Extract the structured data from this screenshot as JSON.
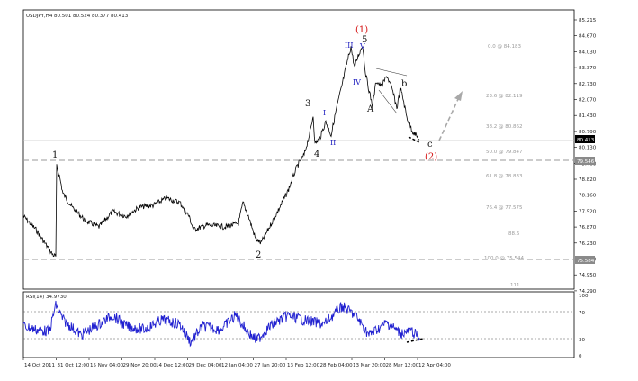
{
  "header": {
    "text": "USDJPY,H4  80.501 80.524 80.377 80.413"
  },
  "rsi": {
    "label": "RSI(14) 34.9730",
    "scale": [
      "100",
      "70",
      "30",
      "0"
    ]
  },
  "price_axis": [
    "85.215",
    "84.670",
    "84.030",
    "83.370",
    "82.730",
    "82.070",
    "81.430",
    "80.790",
    "80.130",
    "79.460",
    "78.820",
    "78.160",
    "77.520",
    "76.870",
    "76.230",
    "75.590",
    "74.950",
    "74.290"
  ],
  "price_badges": {
    "current": "80.413",
    "grey_upper": "79.546",
    "grey_lower": "75.584"
  },
  "fib_levels": [
    "0.0 @ 84.183",
    "23.6 @ 82.119",
    "38.2 @ 80.862",
    "50.0 @ 79.847",
    "61.8 @ 78.833",
    "76.4 @ 77.575",
    "88.6",
    "100.0 @ 75.544",
    "111"
  ],
  "time_axis": [
    "14 Oct 2011",
    "31 Oct 12:00",
    "15 Nov 04:00",
    "29 Nov 20:00",
    "14 Dec 12:00",
    "29 Dec 04:00",
    "12 Jan 04:00",
    "27 Jan 20:00",
    "13 Feb 12:00",
    "28 Feb 04:00",
    "13 Mar 20:00",
    "28 Mar 12:00",
    "12 Apr 04:00"
  ],
  "waves": {
    "w1": "1",
    "w2": "2",
    "w3": "3",
    "w4": "4",
    "w5_paren": "(1)",
    "w5": "5",
    "sub_I": "I",
    "sub_II": "II",
    "sub_III": "III",
    "sub_IV": "IV",
    "sub_V": "V",
    "A": "A",
    "b": "b",
    "c": "c",
    "w2_paren": "(2)"
  },
  "colors": {
    "price_line": "#000000",
    "rsi_line": "#1f1fd0",
    "wave_major": "#111111",
    "wave_sub": "#2020c0",
    "wave_red": "#d41010",
    "projection": "#a8a8a8"
  }
}
